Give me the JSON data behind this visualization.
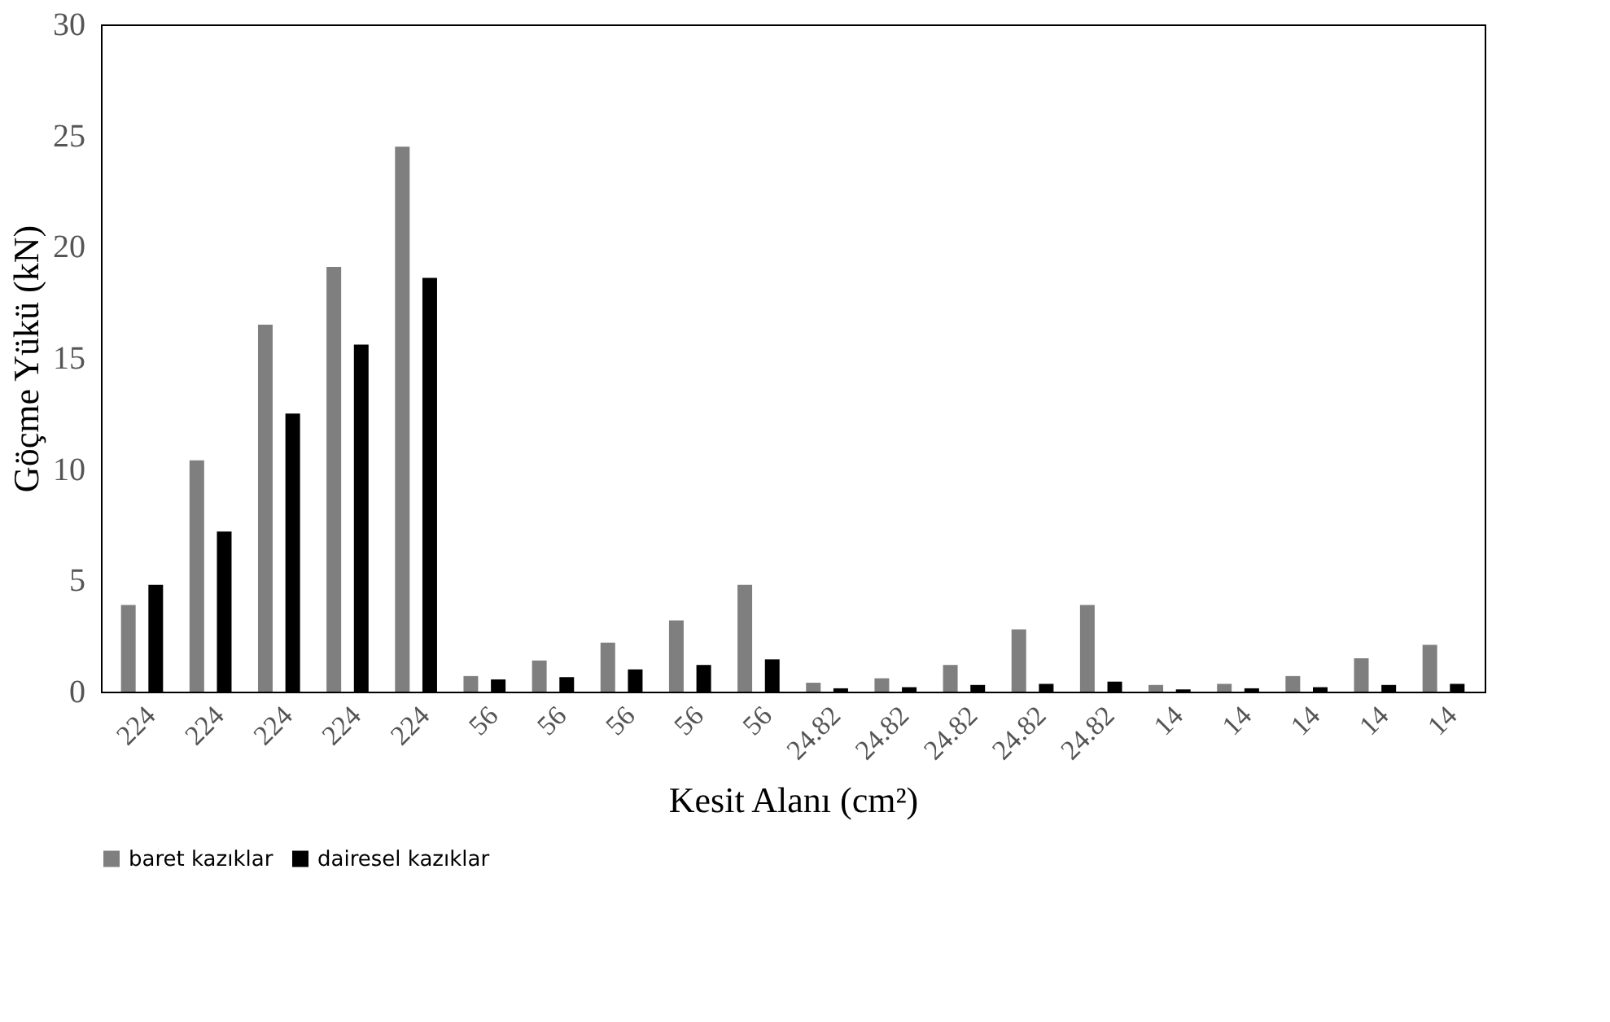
{
  "chart_data": {
    "type": "bar",
    "xlabel": "Kesit Alanı (cm²)",
    "ylabel": "Göçme Yükü (kN)",
    "categories": [
      "224",
      "224",
      "224",
      "224",
      "224",
      "56",
      "56",
      "56",
      "56",
      "56",
      "24.82",
      "24.82",
      "24.82",
      "24.82",
      "24.82",
      "14",
      "14",
      "14",
      "14",
      "14"
    ],
    "series": [
      {
        "name": "baret kazıklar",
        "color": "#7f7f7f",
        "values": [
          3.9,
          10.4,
          16.5,
          19.1,
          24.5,
          0.7,
          1.4,
          2.2,
          3.2,
          4.8,
          0.4,
          0.6,
          1.2,
          2.8,
          3.9,
          0.3,
          0.35,
          0.7,
          1.5,
          2.1
        ]
      },
      {
        "name": "dairesel kazıklar",
        "color": "#000000",
        "values": [
          4.8,
          7.2,
          12.5,
          15.6,
          18.6,
          0.55,
          0.65,
          1.0,
          1.2,
          1.45,
          0.15,
          0.2,
          0.3,
          0.35,
          0.45,
          0.1,
          0.15,
          0.2,
          0.3,
          0.35
        ]
      }
    ],
    "ylim": [
      0,
      30
    ],
    "yticks": [
      0,
      5,
      10,
      15,
      20,
      25,
      30
    ],
    "grid": false,
    "legend": "bottom"
  }
}
